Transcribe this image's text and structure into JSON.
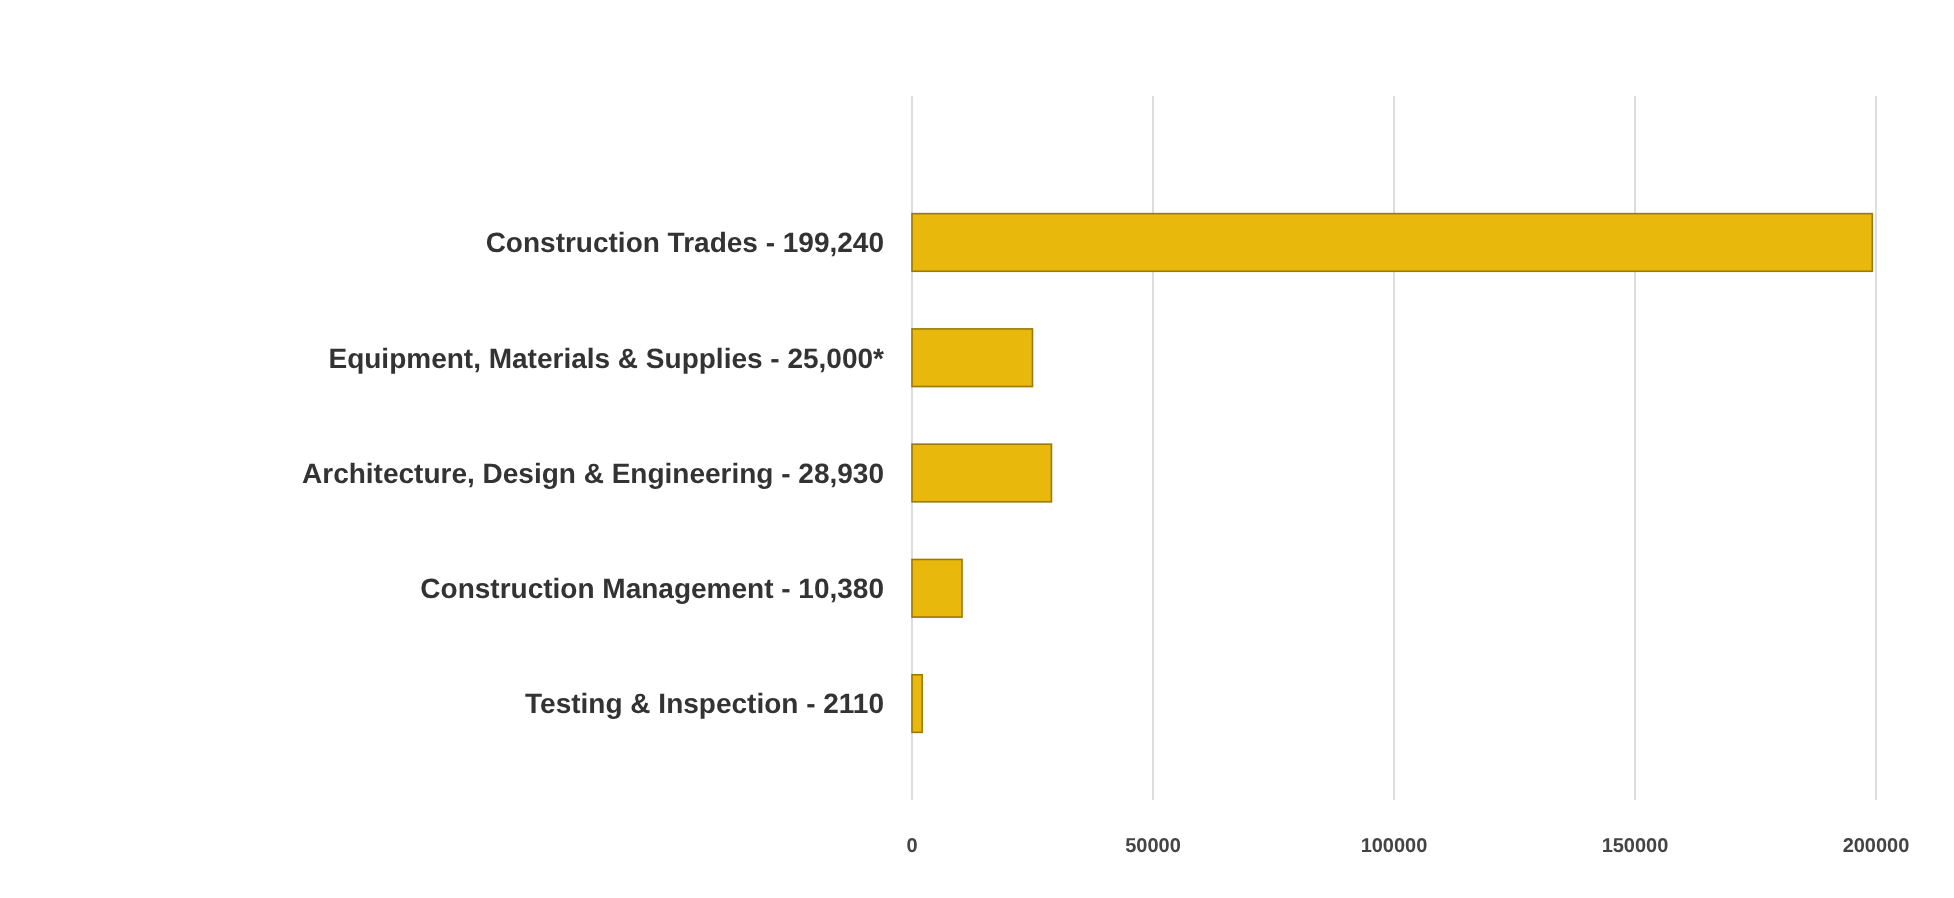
{
  "chart_data": {
    "type": "bar",
    "orientation": "horizontal",
    "categories": [
      "Construction Trades - 199,240",
      "Equipment, Materials & Supplies - 25,000*",
      "Architecture, Design & Engineering - 28,930",
      "Construction Management - 10,380",
      "Testing & Inspection - 2110"
    ],
    "values": [
      199240,
      25000,
      28930,
      10380,
      2110
    ],
    "color": "#e8b80c",
    "xlim": [
      0,
      200000
    ],
    "xticks": [
      0,
      50000,
      100000,
      150000,
      200000
    ],
    "grid": "x"
  }
}
